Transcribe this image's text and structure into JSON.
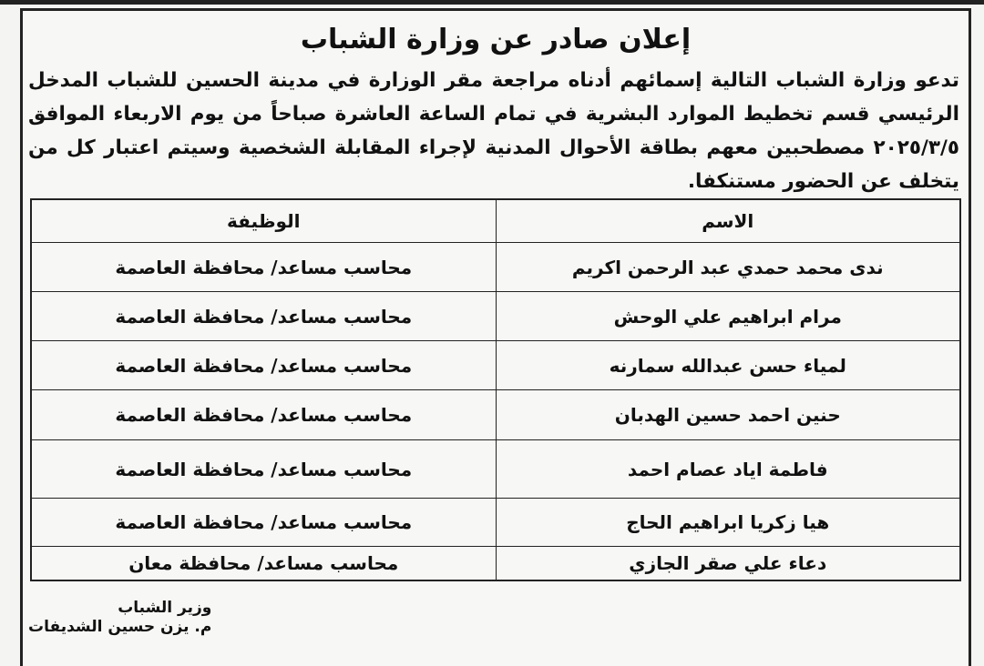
{
  "title": "إعلان صادر عن وزارة الشباب",
  "body": "تدعو وزارة الشباب التالية إسمائهم أدناه مراجعة مقر الوزارة في مدينة الحسين للشباب المدخل الرئيسي قسم تخطيط الموارد البشرية في تمام الساعة العاشرة صباحاً من يوم الاربعاء الموافق ٢٠٢٥/٣/٥ مصطحبين معهم بطاقة الأحوال المدنية لإجراء المقابلة الشخصية وسيتم اعتبار كل من يتخلف عن الحضور مستنكفا.",
  "table": {
    "headers": {
      "name": "الاسم",
      "job": "الوظيفة"
    },
    "rows": [
      {
        "name": "ندى محمد حمدي عبد الرحمن اكريم",
        "job": "محاسب مساعد/ محافظة العاصمة"
      },
      {
        "name": "مرام ابراهيم علي الوحش",
        "job": "محاسب مساعد/ محافظة العاصمة"
      },
      {
        "name": "لمياء حسن عبدالله سمارنه",
        "job": "محاسب مساعد/ محافظة العاصمة"
      },
      {
        "name": "حنين احمد حسين الهدبان",
        "job": "محاسب مساعد/ محافظة العاصمة"
      },
      {
        "name": "فاطمة اياد عصام احمد",
        "job": "محاسب مساعد/ محافظة العاصمة"
      },
      {
        "name": "هيا زكريا ابراهيم الحاج",
        "job": "محاسب مساعد/ محافظة العاصمة"
      },
      {
        "name": "دعاء علي صقر الجازي",
        "job": "محاسب مساعد/ محافظة معان"
      }
    ]
  },
  "signature": {
    "position": "وزير الشباب",
    "name": "م. يزن حسين الشديفات"
  }
}
